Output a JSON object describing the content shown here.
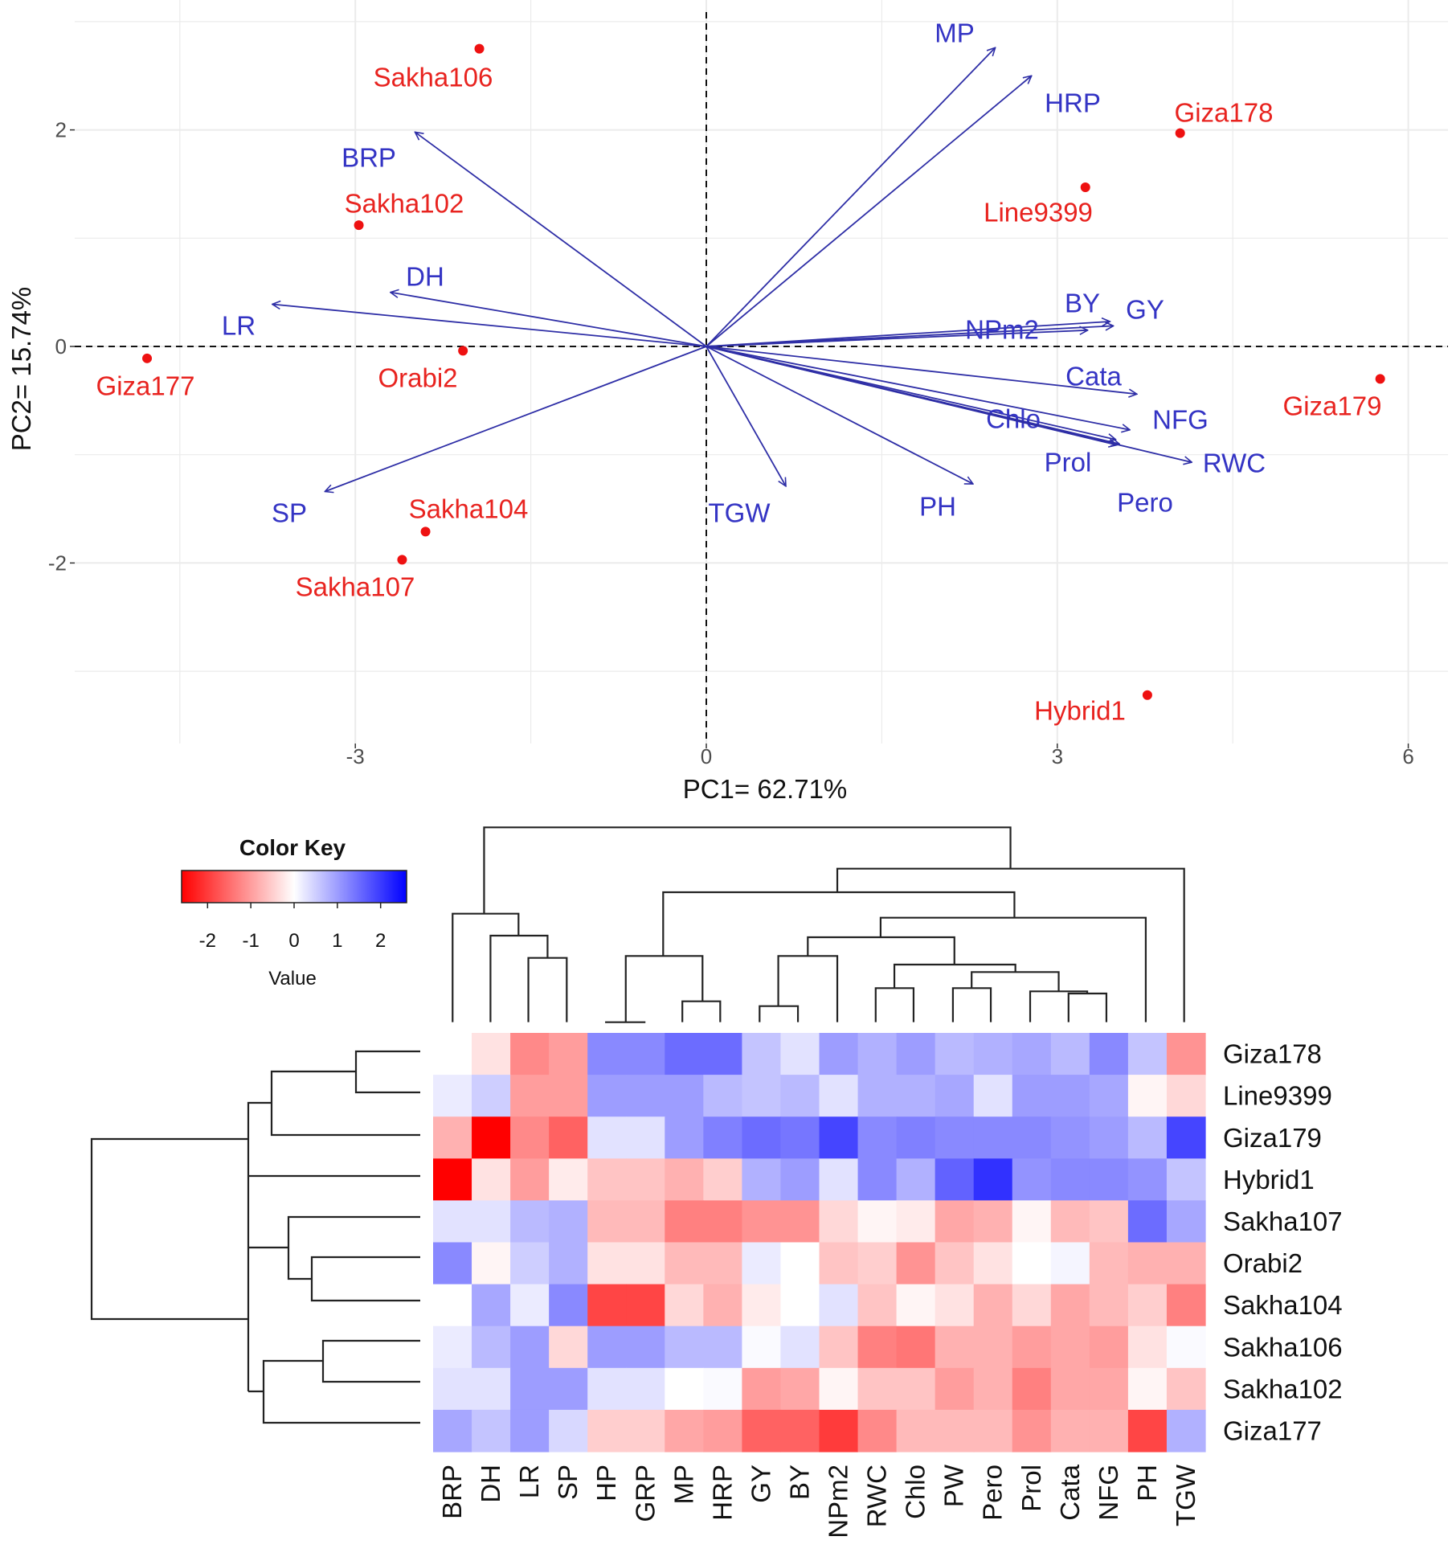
{
  "chart_data": [
    {
      "type": "scatter",
      "subtype": "pca-biplot",
      "xlabel": "PC1= 62.71%",
      "ylabel": "PC2= 15.74%",
      "xlim": [
        -5.4,
        6.3
      ],
      "ylim": [
        -3.6,
        3.2
      ],
      "x_ticks": [
        -3,
        0,
        3,
        6
      ],
      "y_ticks": [
        -2,
        0,
        2
      ],
      "grid": true,
      "colors": {
        "points": "#ee1111",
        "point_labels": "#e8231f",
        "arrows": "#2e2ea6",
        "arrow_labels": "#3434c4"
      },
      "points": [
        {
          "label": "Sakha106",
          "x": -1.94,
          "y": 2.75
        },
        {
          "label": "Giza178",
          "x": 4.05,
          "y": 1.97
        },
        {
          "label": "Line9399",
          "x": 3.24,
          "y": 1.47
        },
        {
          "label": "Sakha102",
          "x": -2.97,
          "y": 1.12
        },
        {
          "label": "Giza177",
          "x": -4.78,
          "y": -0.11
        },
        {
          "label": "Orabi2",
          "x": -2.08,
          "y": -0.04
        },
        {
          "label": "Giza179",
          "x": 5.76,
          "y": -0.3
        },
        {
          "label": "Sakha104",
          "x": -2.4,
          "y": -1.71
        },
        {
          "label": "Sakha107",
          "x": -2.6,
          "y": -1.97
        },
        {
          "label": "Hybrid1",
          "x": 3.77,
          "y": -3.22
        }
      ],
      "loadings": [
        {
          "label": "MP",
          "x": 2.47,
          "y": 2.76
        },
        {
          "label": "HRP",
          "x": 2.78,
          "y": 2.5
        },
        {
          "label": "BRP",
          "x": -2.49,
          "y": 1.98
        },
        {
          "label": "DH",
          "x": -2.7,
          "y": 0.5
        },
        {
          "label": "LR",
          "x": -3.71,
          "y": 0.39
        },
        {
          "label": "SP",
          "x": -3.26,
          "y": -1.34
        },
        {
          "label": "TGW",
          "x": 0.68,
          "y": -1.29
        },
        {
          "label": "PH",
          "x": 2.28,
          "y": -1.27
        },
        {
          "label": "BY",
          "x": 3.45,
          "y": 0.23
        },
        {
          "label": "GY",
          "x": 3.48,
          "y": 0.19
        },
        {
          "label": "NPm2",
          "x": 3.26,
          "y": 0.15
        },
        {
          "label": "Cata",
          "x": 3.68,
          "y": -0.44
        },
        {
          "label": "NFG",
          "x": 3.62,
          "y": -0.77
        },
        {
          "label": "Chlo",
          "x": 3.5,
          "y": -0.86
        },
        {
          "label": "Prol",
          "x": 3.51,
          "y": -0.91
        },
        {
          "label": "RWC",
          "x": 4.15,
          "y": -1.07
        },
        {
          "label": "Pero",
          "x": 3.53,
          "y": -0.9
        }
      ]
    },
    {
      "type": "heatmap",
      "color_key": {
        "title": "Color Key",
        "xlabel": "Value",
        "ticks": [
          -2,
          -1,
          0,
          1,
          2
        ],
        "range": [
          -2.6,
          2.6
        ],
        "low": "#ff0000",
        "mid": "#ffffff",
        "high": "#0000ff"
      },
      "rows": [
        "Giza178",
        "Line9399",
        "Giza179",
        "Hybrid1",
        "Sakha107",
        "Orabi2",
        "Sakha104",
        "Sakha106",
        "Sakha102",
        "Giza177"
      ],
      "columns": [
        "BRP",
        "DH",
        "LR",
        "SP",
        "HP",
        "GRP",
        "MP",
        "HRP",
        "GY",
        "BY",
        "NPm2",
        "RWC",
        "Chlo",
        "PW",
        "Pero",
        "Prol",
        "Cata",
        "NFG",
        "PH",
        "TGW"
      ],
      "values": [
        [
          0,
          -0.3,
          -1.2,
          -1.0,
          1.2,
          1.2,
          1.5,
          1.5,
          0.6,
          0.3,
          1.0,
          0.8,
          1.0,
          0.7,
          0.8,
          0.9,
          0.7,
          1.2,
          0.6,
          -1.1
        ],
        [
          0.2,
          0.5,
          -1.0,
          -1.0,
          1.0,
          1.0,
          1.0,
          0.7,
          0.6,
          0.7,
          0.3,
          0.8,
          0.8,
          0.9,
          0.3,
          1.0,
          1.0,
          0.9,
          -0.1,
          -0.4
        ],
        [
          -0.8,
          -2.6,
          -1.2,
          -1.6,
          0.3,
          0.3,
          1.0,
          1.3,
          1.5,
          1.4,
          1.9,
          1.2,
          1.3,
          1.2,
          1.2,
          1.2,
          1.1,
          1.0,
          0.7,
          1.9
        ],
        [
          -2.6,
          -0.3,
          -1.0,
          -0.2,
          -0.6,
          -0.6,
          -0.8,
          -0.5,
          0.8,
          1.0,
          0.3,
          1.2,
          0.8,
          1.6,
          2.1,
          1.1,
          1.2,
          1.2,
          1.1,
          0.6
        ],
        [
          0.3,
          0.3,
          0.7,
          0.8,
          -0.7,
          -0.7,
          -1.3,
          -1.3,
          -1.1,
          -1.1,
          -0.4,
          -0.1,
          -0.2,
          -0.9,
          -0.8,
          -0.1,
          -0.7,
          -0.6,
          1.5,
          0.9
        ],
        [
          1.2,
          -0.1,
          0.5,
          0.8,
          -0.3,
          -0.3,
          -0.7,
          -0.7,
          0.2,
          0,
          -0.6,
          -0.5,
          -1.1,
          -0.6,
          -0.3,
          0,
          0.1,
          -0.7,
          -0.8,
          -0.8
        ],
        [
          0,
          0.9,
          0.2,
          1.2,
          -1.9,
          -1.9,
          -0.4,
          -0.8,
          -0.2,
          0,
          0.3,
          -0.6,
          -0.1,
          -0.3,
          -0.8,
          -0.4,
          -0.9,
          -0.7,
          -0.5,
          -1.3
        ],
        [
          0.2,
          0.7,
          1.0,
          -0.4,
          1.0,
          1.0,
          0.7,
          0.7,
          0.05,
          0.3,
          -0.6,
          -1.3,
          -1.4,
          -0.8,
          -0.8,
          -1.0,
          -0.9,
          -1.0,
          -0.3,
          0.05
        ],
        [
          0.3,
          0.3,
          1.0,
          1.0,
          0.3,
          0.3,
          0,
          0.05,
          -1.0,
          -0.9,
          -0.1,
          -0.6,
          -0.6,
          -1.0,
          -0.8,
          -1.3,
          -0.9,
          -0.9,
          -0.1,
          -0.6
        ],
        [
          0.9,
          0.6,
          1.0,
          0.4,
          -0.5,
          -0.5,
          -0.9,
          -1.0,
          -1.6,
          -1.6,
          -2.0,
          -1.2,
          -0.7,
          -0.7,
          -0.7,
          -1.1,
          -0.8,
          -0.8,
          -1.9,
          0.8
        ]
      ]
    }
  ]
}
